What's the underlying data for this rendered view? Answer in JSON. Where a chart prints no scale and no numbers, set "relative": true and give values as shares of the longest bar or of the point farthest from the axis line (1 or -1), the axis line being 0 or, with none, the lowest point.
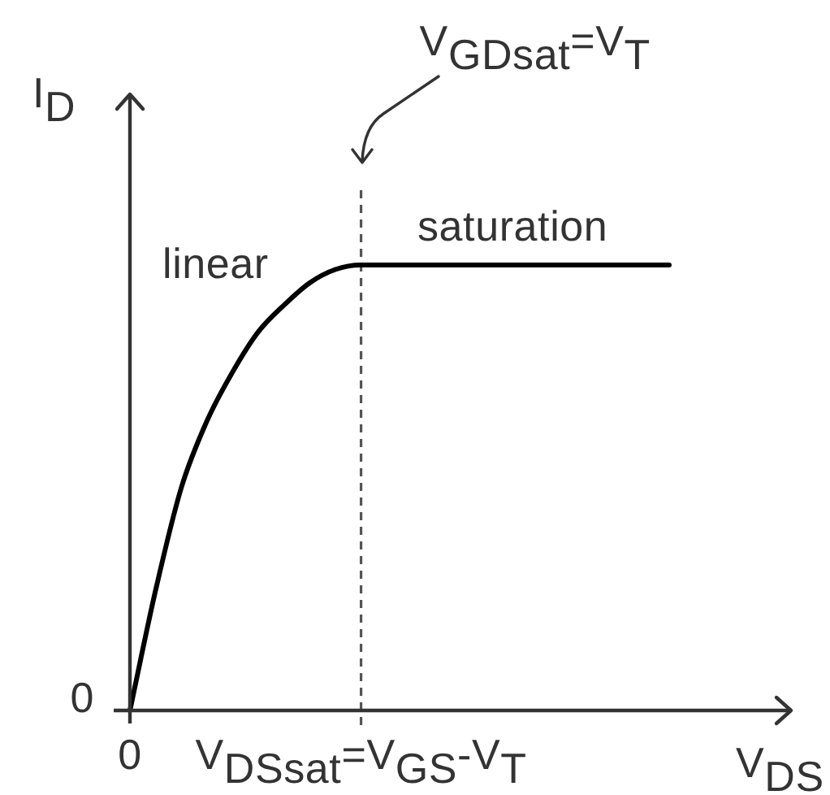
{
  "chart_data": {
    "type": "line",
    "relative": true,
    "categories": [
      "0",
      null,
      null,
      null,
      null,
      null,
      null,
      null,
      null,
      "V$_{DSsat}$=V$_{GS}$-V$_{T}$",
      null,
      null,
      null,
      null,
      null,
      null,
      null,
      null,
      null,
      null,
      null,
      null
    ],
    "series": [
      {
        "color": "#000000",
        "values": [
          0,
          0.27,
          0.5,
          0.65,
          0.76,
          0.85,
          0.91,
          0.96,
          0.99,
          1,
          1,
          1,
          1,
          1,
          1,
          1,
          1,
          1,
          1,
          1,
          1,
          1
        ]
      }
    ],
    "xlabel": "V$_{DS}$",
    "ylabel": "I$_{D}$",
    "ref_lines": [
      {
        "axis": "x",
        "value": "V$_{DSsat}$=V$_{GS}$-V$_{T}$",
        "label": "V$_{GDsat}$=V$_{T}$",
        "line_style": "dashed",
        "color": "#555555"
      }
    ],
    "annotations": [
      "linear",
      "saturation",
      "0"
    ],
    "marker": "none"
  }
}
